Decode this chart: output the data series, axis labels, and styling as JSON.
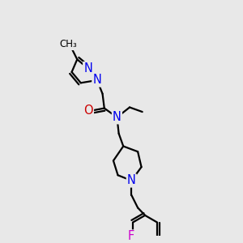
{
  "bg_color": "#e8e8e8",
  "bond_color": "#000000",
  "bond_width": 1.6,
  "atom_colors": {
    "N": "#0000ee",
    "O": "#cc0000",
    "F": "#cc00cc",
    "C": "#000000"
  },
  "font_size_atom": 10.5,
  "figsize": [
    3.0,
    3.0
  ],
  "dpi": 100
}
